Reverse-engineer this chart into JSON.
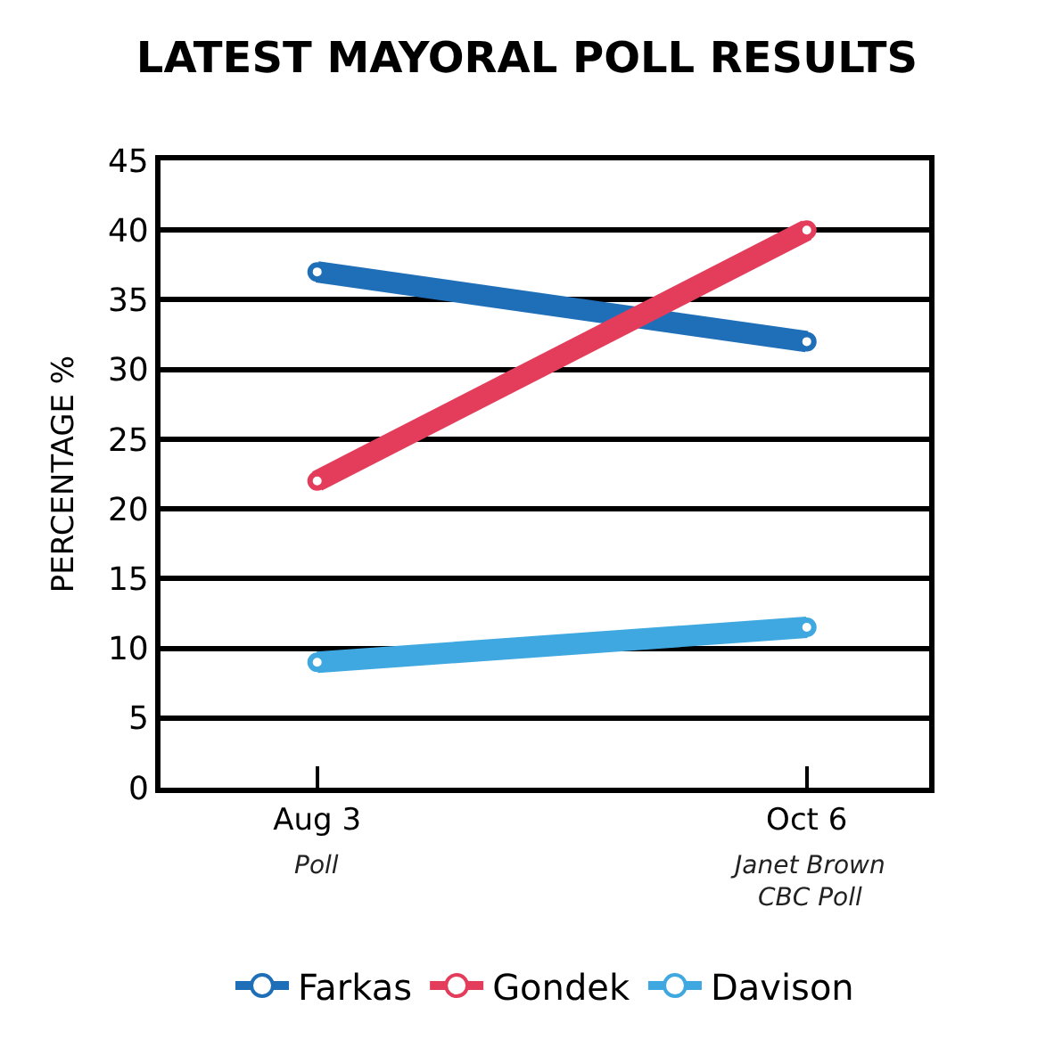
{
  "chart_data": {
    "type": "line",
    "title": "LATEST MAYORAL POLL RESULTS",
    "ylabel": "PERCENTAGE %",
    "categories": [
      "Aug 3",
      "Oct 6"
    ],
    "series": [
      {
        "name": "Farkas",
        "color": "#1f6fb8",
        "values": [
          37,
          32
        ]
      },
      {
        "name": "Gondek",
        "color": "#e43d5c",
        "values": [
          22,
          40
        ]
      },
      {
        "name": "Davison",
        "color": "#3fa8e0",
        "values": [
          9,
          11.5
        ]
      }
    ],
    "annotations": [
      "Poll",
      "Janet Brown\nCBC Poll"
    ],
    "ylim": [
      0,
      45
    ],
    "yticks": [
      0,
      5,
      10,
      15,
      20,
      25,
      30,
      35,
      40,
      45
    ],
    "grid": "y",
    "legend": "bottom",
    "marker": "circle",
    "line_style": "solid"
  }
}
